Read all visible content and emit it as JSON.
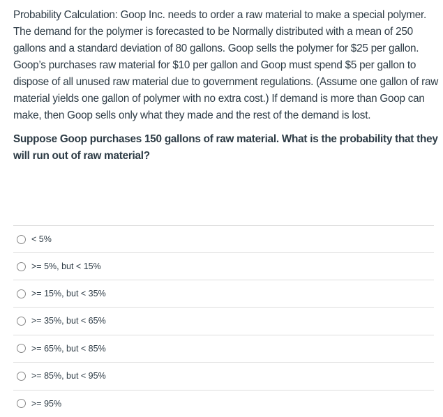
{
  "question": {
    "paragraphs": [
      "Probability Calculation: Goop Inc. needs to order a raw material to make a special polymer.  The demand for the polymer is forecasted to be Normally distributed with a mean of 250 gallons and a standard deviation of 80 gallons.  Goop sells the polymer for $25 per gallon.  Goop’s purchases raw material for $10 per gallon and Goop must spend $5 per gallon to dispose of all unused raw material due to government regulations. (Assume one gallon of raw material yields one gallon of polymer with no extra cost.) If demand is more than Goop can make, then Goop sells only what they made and the rest of the demand is lost."
    ],
    "prompt": "Suppose Goop purchases 150 gallons of raw material. What is the probability that they will run out of raw material?"
  },
  "answers": [
    {
      "label": "< 5%",
      "selected": false
    },
    {
      "label": ">= 5%, but < 15%",
      "selected": false
    },
    {
      "label": ">= 15%, but < 35%",
      "selected": false
    },
    {
      "label": ">= 35%, but < 65%",
      "selected": false
    },
    {
      "label": ">= 65%, but < 85%",
      "selected": false
    },
    {
      "label": ">= 85%, but < 95%",
      "selected": false
    },
    {
      "label": ">= 95%",
      "selected": false
    }
  ]
}
